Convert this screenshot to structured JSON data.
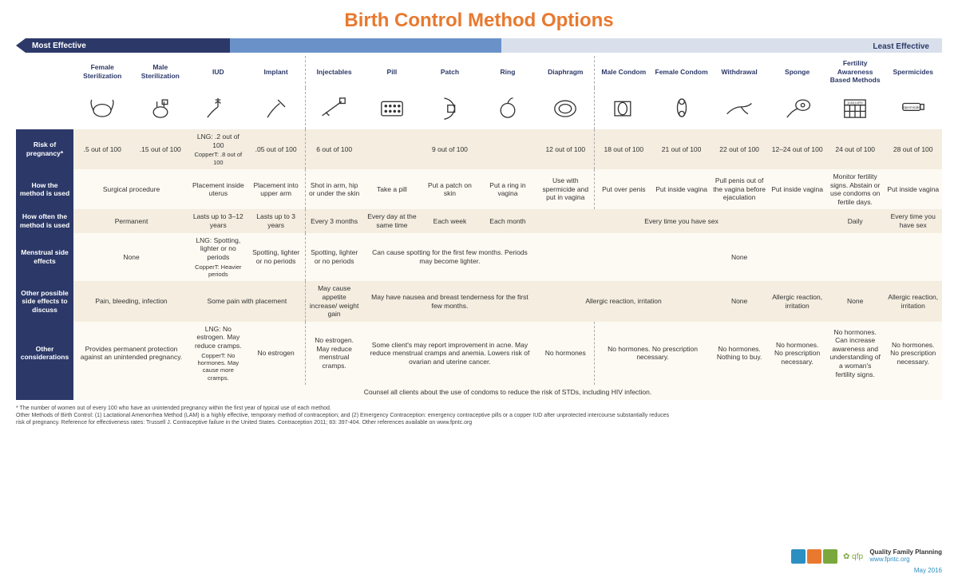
{
  "title": "Birth Control Method Options",
  "title_color": "#e8792f",
  "effectiveness_bar": {
    "most_label": "Most Effective",
    "least_label": "Least Effective",
    "seg1_color": "#2c3968",
    "seg2_color": "#6a92c9",
    "seg3_color": "#d9e0ec",
    "seg1_width": 256,
    "seg2_width": 340,
    "seg3_width": 530,
    "text_light": "#ffffff",
    "text_dark": "#2c3968"
  },
  "columns": [
    {
      "label": "Female Sterilization"
    },
    {
      "label": "Male Sterilization"
    },
    {
      "label": "IUD"
    },
    {
      "label": "Implant"
    },
    {
      "label": "Injectables"
    },
    {
      "label": "Pill"
    },
    {
      "label": "Patch"
    },
    {
      "label": "Ring"
    },
    {
      "label": "Diaphragm"
    },
    {
      "label": "Male Condom"
    },
    {
      "label": "Female Condom"
    },
    {
      "label": "Withdrawal"
    },
    {
      "label": "Sponge"
    },
    {
      "label": "Fertility Awareness Based Methods"
    },
    {
      "label": "Spermicides"
    }
  ],
  "row_labels": {
    "risk": "Risk of pregnancy*",
    "how_used": "How the method is used",
    "how_often": "How often the method is used",
    "menstrual": "Menstrual side effects",
    "other_side": "Other possible side effects to discuss",
    "other_cons": "Other considerations"
  },
  "rows": {
    "risk": [
      {
        "t": ".5 out of 100"
      },
      {
        "t": ".15 out of 100"
      },
      {
        "t": "LNG: .2 out of 100",
        "t2": "CopperT: .8 out of 100"
      },
      {
        "t": ".05 out of 100"
      },
      {
        "t": "6 out of 100"
      },
      {
        "t": "9 out of 100",
        "span": 3
      },
      {
        "t": "12 out of 100"
      },
      {
        "t": "18 out of 100"
      },
      {
        "t": "21 out of 100"
      },
      {
        "t": "22 out of 100"
      },
      {
        "t": "12–24 out of 100"
      },
      {
        "t": "24 out of 100"
      },
      {
        "t": "28 out of 100"
      }
    ],
    "how_used": [
      {
        "t": "Surgical procedure",
        "span": 2
      },
      {
        "t": "Placement inside uterus"
      },
      {
        "t": "Placement into upper arm"
      },
      {
        "t": "Shot in arm, hip or under the skin"
      },
      {
        "t": "Take a pill"
      },
      {
        "t": "Put a patch on skin"
      },
      {
        "t": "Put a ring in vagina"
      },
      {
        "t": "Use with spermicide and put in vagina"
      },
      {
        "t": "Put over penis"
      },
      {
        "t": "Put inside vagina"
      },
      {
        "t": "Pull penis out of the vagina before ejaculation"
      },
      {
        "t": "Put inside vagina"
      },
      {
        "t": "Monitor fertility signs. Abstain or use condoms on fertile days."
      },
      {
        "t": "Put inside vagina"
      }
    ],
    "how_often": [
      {
        "t": "Permanent",
        "span": 2
      },
      {
        "t": "Lasts up to 3–12 years"
      },
      {
        "t": "Lasts up to 3 years"
      },
      {
        "t": "Every 3 months"
      },
      {
        "t": "Every day at the same time"
      },
      {
        "t": "Each week"
      },
      {
        "t": "Each month"
      },
      {
        "t": "Every time you have sex",
        "span": 5
      },
      {
        "t": "Daily"
      },
      {
        "t": "Every time you have sex"
      }
    ],
    "menstrual": [
      {
        "t": "None",
        "span": 2
      },
      {
        "t": "LNG: Spotting, lighter or no periods",
        "t2": "CopperT: Heavier periods"
      },
      {
        "t": "Spotting, lighter or no periods"
      },
      {
        "t": "Spotting, lighter or no periods"
      },
      {
        "t": "Can cause spotting for the first few months. Periods may become lighter.",
        "span": 3
      },
      {
        "t": "None",
        "span": 7
      }
    ],
    "other_side": [
      {
        "t": "Pain, bleeding, infection",
        "span": 2
      },
      {
        "t": "Some pain with placement",
        "span": 2
      },
      {
        "t": "May cause appetite increase/ weight gain"
      },
      {
        "t": "May have nausea and breast tenderness for the first few months.",
        "span": 3
      },
      {
        "t": "Allergic reaction, irritation",
        "span": 3
      },
      {
        "t": "None"
      },
      {
        "t": "Allergic reaction, irritation"
      },
      {
        "t": "None"
      },
      {
        "t": "Allergic reaction, irritation"
      }
    ],
    "other_cons": [
      {
        "t": "Provides permanent protection against an unintended pregnancy.",
        "span": 2
      },
      {
        "t": "LNG: No estrogen. May reduce cramps.",
        "t2": "CopperT: No hormones. May cause more cramps."
      },
      {
        "t": "No estrogen"
      },
      {
        "t": "No estrogen. May reduce menstrual cramps."
      },
      {
        "t": "Some client's may report improvement in acne. May reduce menstrual cramps and anemia. Lowers risk of ovarian and uterine cancer.",
        "span": 3
      },
      {
        "t": "No hormones"
      },
      {
        "t": "No hormones. No prescription necessary.",
        "span": 2
      },
      {
        "t": "No hormones. Nothing to buy."
      },
      {
        "t": "No hormones. No prescription necessary."
      },
      {
        "t": "No hormones. Can increase awareness and understanding of a woman's fertility signs."
      },
      {
        "t": "No hormones. No prescription necessary."
      }
    ]
  },
  "counsel": "Counsel all clients about the use of condoms to reduce the risk of STDs, including HIV infection.",
  "footnotes": [
    "* The number of women out of every 100 who have an unintended pregnancy within the first year of typical use of each method.",
    "Other Methods of Birth Control: (1) Lactational Amenorrhea Method (LAM) is a highly effective, temporary method of contraception; and (2) Emergency Contraception: emergency contraceptive pills or a copper IUD after unprotected intercourse substantially reduces risk of pregnancy. Reference for effectiveness rates: Trussell J. Contraceptive failure in the United States. Contraception 2011; 83: 397-404. Other references available on www.fpntc.org"
  ],
  "footer": {
    "org1": "Quality Family Planning",
    "org1_url": "www.fpntc.org",
    "date": "May 2016",
    "logo_colors": [
      "#2c8fc1",
      "#e8792f",
      "#7aa83c"
    ]
  },
  "row_header_bg": "#2c3968",
  "row_odd_bg": "#f4ede0",
  "row_even_bg": "#fdfaf3"
}
